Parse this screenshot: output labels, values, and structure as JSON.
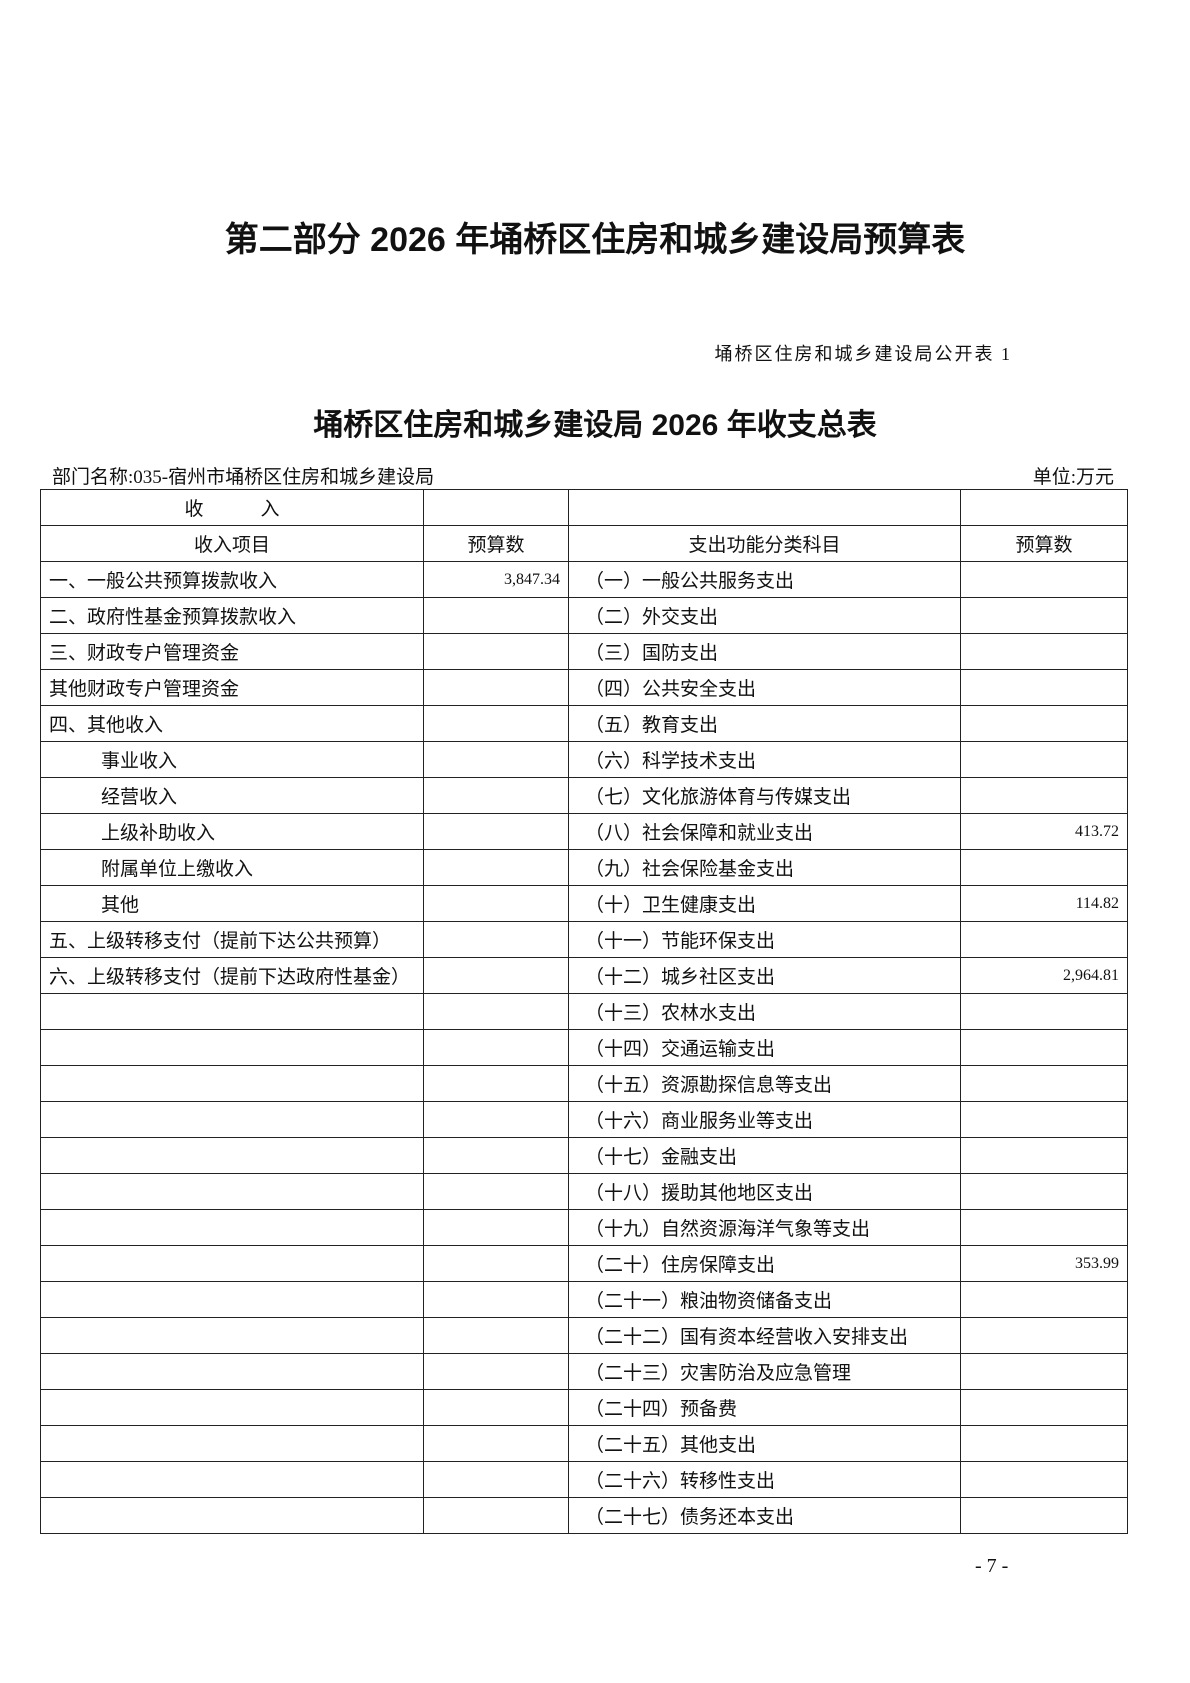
{
  "part_title": "第二部分  2026 年埇桥区住房和城乡建设局预算表",
  "table_no": "埇桥区住房和城乡建设局公开表 1",
  "table_title": "埇桥区住房和城乡建设局 2026 年收支总表",
  "dept_label": "部门名称:035-宿州市埇桥区住房和城乡建设局",
  "unit_label": "单位:万元",
  "header": {
    "income_group": "收　　　入",
    "expense_group": "",
    "income_item": "收入项目",
    "income_budget": "预算数",
    "expense_item": "支出功能分类科目",
    "expense_budget": "预算数"
  },
  "rows": [
    {
      "income": "一、一般公共预算拨款收入",
      "income_value": "3,847.34",
      "expense": "（一）一般公共服务支出",
      "expense_value": ""
    },
    {
      "income": "二、政府性基金预算拨款收入",
      "income_value": "",
      "expense": "（二）外交支出",
      "expense_value": ""
    },
    {
      "income": "三、财政专户管理资金",
      "income_value": "",
      "expense": "（三）国防支出",
      "expense_value": ""
    },
    {
      "income": "其他财政专户管理资金",
      "income_value": "",
      "expense": "（四）公共安全支出",
      "expense_value": ""
    },
    {
      "income": "四、其他收入",
      "income_value": "",
      "expense": "（五）教育支出",
      "expense_value": ""
    },
    {
      "income": "事业收入",
      "indent": true,
      "income_value": "",
      "expense": "（六）科学技术支出",
      "expense_value": ""
    },
    {
      "income": "经营收入",
      "indent": true,
      "income_value": "",
      "expense": "（七）文化旅游体育与传媒支出",
      "expense_value": ""
    },
    {
      "income": "上级补助收入",
      "indent": true,
      "income_value": "",
      "expense": "（八）社会保障和就业支出",
      "expense_value": "413.72"
    },
    {
      "income": "附属单位上缴收入",
      "indent": true,
      "income_value": "",
      "expense": "（九）社会保险基金支出",
      "expense_value": ""
    },
    {
      "income": "其他",
      "indent": true,
      "income_value": "",
      "expense": "（十）卫生健康支出",
      "expense_value": "114.82"
    },
    {
      "income": "五、上级转移支付（提前下达公共预算）",
      "income_value": "",
      "expense": "（十一）节能环保支出",
      "expense_value": ""
    },
    {
      "income": "六、上级转移支付（提前下达政府性基金）",
      "income_value": "",
      "expense": "（十二）城乡社区支出",
      "expense_value": "2,964.81"
    },
    {
      "income": "",
      "income_value": "",
      "expense": "（十三）农林水支出",
      "expense_value": ""
    },
    {
      "income": "",
      "income_value": "",
      "expense": "（十四）交通运输支出",
      "expense_value": ""
    },
    {
      "income": "",
      "income_value": "",
      "expense": "（十五）资源勘探信息等支出",
      "expense_value": ""
    },
    {
      "income": "",
      "income_value": "",
      "expense": "（十六）商业服务业等支出",
      "expense_value": ""
    },
    {
      "income": "",
      "income_value": "",
      "expense": "（十七）金融支出",
      "expense_value": ""
    },
    {
      "income": "",
      "income_value": "",
      "expense": "（十八）援助其他地区支出",
      "expense_value": ""
    },
    {
      "income": "",
      "income_value": "",
      "expense": "（十九）自然资源海洋气象等支出",
      "expense_value": ""
    },
    {
      "income": "",
      "income_value": "",
      "expense": "（二十）住房保障支出",
      "expense_value": "353.99"
    },
    {
      "income": "",
      "income_value": "",
      "expense": "（二十一）粮油物资储备支出",
      "expense_value": ""
    },
    {
      "income": "",
      "income_value": "",
      "expense": "（二十二）国有资本经营收入安排支出",
      "expense_value": ""
    },
    {
      "income": "",
      "income_value": "",
      "expense": "（二十三）灾害防治及应急管理",
      "expense_value": ""
    },
    {
      "income": "",
      "income_value": "",
      "expense": "（二十四）预备费",
      "expense_value": ""
    },
    {
      "income": "",
      "income_value": "",
      "expense": "（二十五）其他支出",
      "expense_value": ""
    },
    {
      "income": "",
      "income_value": "",
      "expense": "（二十六）转移性支出",
      "expense_value": ""
    },
    {
      "income": "",
      "income_value": "",
      "expense": "（二十七）债务还本支出",
      "expense_value": ""
    }
  ],
  "page_number": "- 7 -"
}
